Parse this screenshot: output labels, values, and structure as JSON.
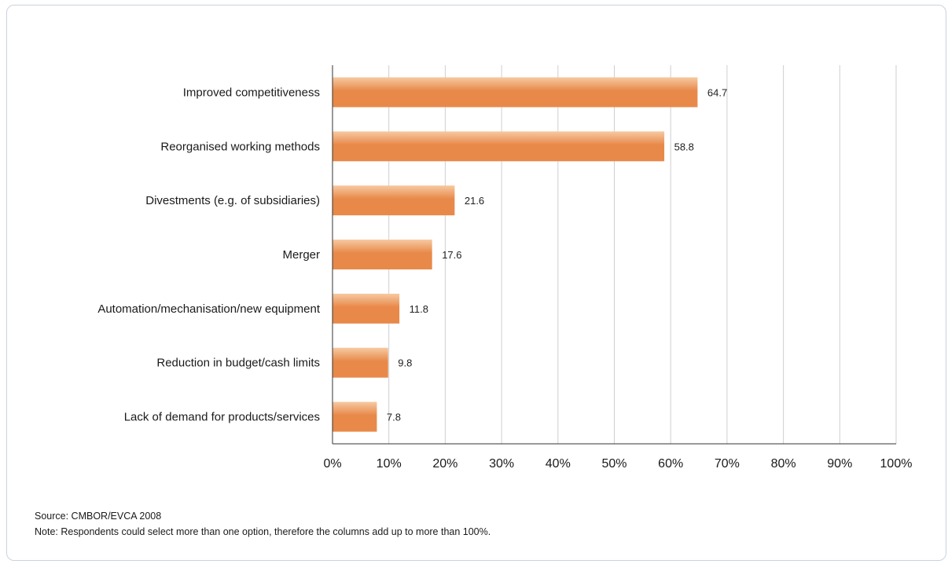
{
  "chart_data": {
    "type": "bar",
    "orientation": "horizontal",
    "categories": [
      "Improved competitiveness",
      "Reorganised working methods",
      "Divestments (e.g. of subsidiaries)",
      "Merger",
      "Automation/mechanisation/new equipment",
      "Reduction in budget/cash limits",
      "Lack of demand for products/services"
    ],
    "values": [
      64.7,
      58.8,
      21.6,
      17.6,
      11.8,
      9.8,
      7.8
    ],
    "value_labels": [
      "64.7",
      "58.8",
      "21.6",
      "17.6",
      "11.8",
      "9.8",
      "7.8"
    ],
    "xlim": [
      0,
      100
    ],
    "x_ticks": [
      "0%",
      "10%",
      "20%",
      "30%",
      "40%",
      "50%",
      "60%",
      "70%",
      "80%",
      "90%",
      "100%"
    ],
    "grid": "vertical",
    "bar_color": "#e8894a",
    "bar_highlight_color": "#f7c9a2",
    "grid_color": "#cfcfcf",
    "axis_color": "#333333"
  },
  "footer": {
    "source": "Source: CMBOR/EVCA 2008",
    "note": "Note: Respondents could select more than one option, therefore the columns add up to more than 100%."
  }
}
